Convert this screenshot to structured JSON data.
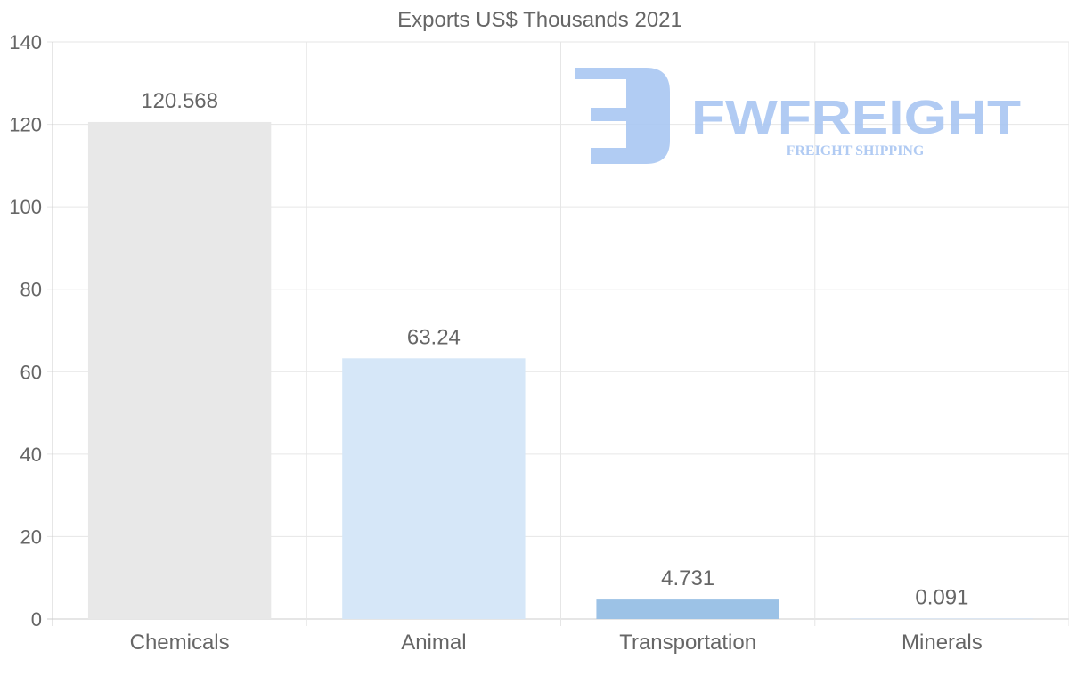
{
  "chart_data": {
    "type": "bar",
    "title": "Exports US$ Thousands 2021",
    "categories": [
      "Chemicals",
      "Animal",
      "Transportation",
      "Minerals"
    ],
    "values": [
      120.568,
      63.24,
      4.731,
      0.091
    ],
    "value_labels": [
      "120.568",
      "63.24",
      "4.731",
      "0.091"
    ],
    "colors": [
      "#e8e8e8",
      "#d6e7f8",
      "#9cc2e6",
      "#b5cfe9"
    ],
    "xlabel": "",
    "ylabel": "",
    "ylim": [
      0,
      140
    ],
    "yticks": [
      0,
      20,
      40,
      60,
      80,
      100,
      120,
      140
    ],
    "grid": true,
    "legend": "none"
  },
  "watermark": {
    "brand": "FWFREIGHT",
    "tagline": "FREIGHT SHIPPING",
    "color": "#a9c6f2"
  }
}
